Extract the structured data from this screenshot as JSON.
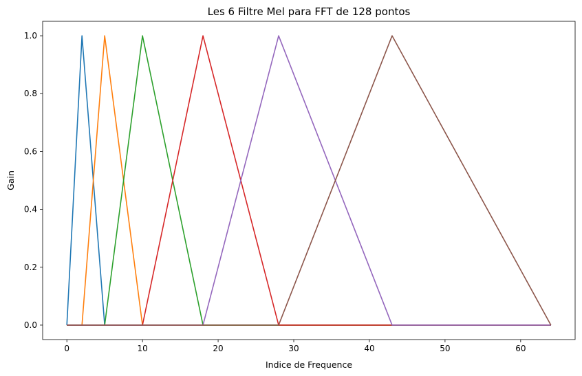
{
  "chart_data": {
    "type": "line",
    "title": "Les 6 Filtre Mel para FFT de 128 pontos",
    "xlabel": "Indice de Frequence",
    "ylabel": "Gain",
    "xlim": [
      -3.2,
      67.2
    ],
    "ylim": [
      -0.05,
      1.05
    ],
    "xticks": [
      0,
      10,
      20,
      30,
      40,
      50,
      60
    ],
    "yticks": [
      0.0,
      0.2,
      0.4,
      0.6,
      0.8,
      1.0
    ],
    "xtick_labels": [
      "0",
      "10",
      "20",
      "30",
      "40",
      "50",
      "60"
    ],
    "ytick_labels": [
      "0.0",
      "0.2",
      "0.4",
      "0.6",
      "0.8",
      "1.0"
    ],
    "grid": false,
    "legend": "none",
    "x_range": [
      0,
      64
    ],
    "series": [
      {
        "peaks": [
          0,
          2,
          5
        ],
        "color": "#1f77b4"
      },
      {
        "peaks": [
          2,
          5,
          10
        ],
        "color": "#ff7f0e"
      },
      {
        "peaks": [
          5,
          10,
          18
        ],
        "color": "#2ca02c"
      },
      {
        "peaks": [
          10,
          18,
          28
        ],
        "color": "#d62728"
      },
      {
        "peaks": [
          18,
          28,
          43
        ],
        "color": "#9467bd"
      },
      {
        "peaks": [
          28,
          43,
          64
        ],
        "color": "#8c564b"
      }
    ]
  }
}
